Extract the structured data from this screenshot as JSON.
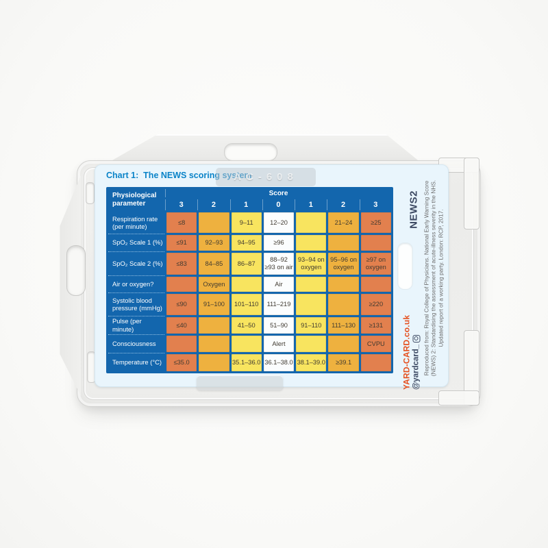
{
  "holder": {
    "embossed_text": "AC-608"
  },
  "card": {
    "title": "Chart 1:  The NEWS scoring system",
    "side": {
      "news2_label": "NEWS2",
      "attribution_lines": [
        "Reproduced from: Royal College of Physicians. National Early Warning Score",
        "(NEWS) 2: Standardising the assessment of acute-illness severity in the NHS.",
        "Updated report of a working party. London: RCP, 2017."
      ],
      "brand_url": "YARD-CARD.co.uk",
      "instagram_handle": "@yardcard_",
      "instagram_icon": "instagram-icon"
    },
    "colors": {
      "card_bg": "#e9f5fc",
      "title_blue": "#0a83c8",
      "table_blue": "#1366ad",
      "brand_orange": "#e5501f",
      "navy": "#3d4a63"
    }
  },
  "table": {
    "header": {
      "parameter_label": "Physiological parameter",
      "score_label": "Score",
      "score_columns": [
        "3",
        "2",
        "1",
        "0",
        "1",
        "2",
        "3"
      ]
    },
    "colors": {
      "score_3": "#e2804e",
      "score_2": "#eeb13f",
      "score_1": "#f8e45f",
      "score_0": "#fbfdfe"
    },
    "rows": [
      {
        "label": "Respiration rate (per minute)",
        "cells": [
          {
            "text": "≤8",
            "color": "score_3"
          },
          {
            "text": "",
            "color": "score_2"
          },
          {
            "text": "9–11",
            "color": "score_1"
          },
          {
            "text": "12–20",
            "color": "score_0"
          },
          {
            "text": "",
            "color": "score_1"
          },
          {
            "text": "21–24",
            "color": "score_2"
          },
          {
            "text": "≥25",
            "color": "score_3"
          }
        ]
      },
      {
        "label": "SpO₂ Scale 1 (%)",
        "cells": [
          {
            "text": "≤91",
            "color": "score_3"
          },
          {
            "text": "92–93",
            "color": "score_2"
          },
          {
            "text": "94–95",
            "color": "score_1"
          },
          {
            "text": "≥96",
            "color": "score_0"
          },
          {
            "text": "",
            "color": "score_1"
          },
          {
            "text": "",
            "color": "score_2"
          },
          {
            "text": "",
            "color": "score_3"
          }
        ]
      },
      {
        "label": "SpO₂ Scale 2 (%)",
        "cells": [
          {
            "text": "≤83",
            "color": "score_3"
          },
          {
            "text": "84–85",
            "color": "score_2"
          },
          {
            "text": "86–87",
            "color": "score_1"
          },
          {
            "text": "88–92\n≥93 on air",
            "color": "score_0"
          },
          {
            "text": "93–94 on oxygen",
            "color": "score_1"
          },
          {
            "text": "95–96 on oxygen",
            "color": "score_2"
          },
          {
            "text": "≥97 on oxygen",
            "color": "score_3"
          }
        ]
      },
      {
        "label": "Air or oxygen?",
        "cells": [
          {
            "text": "",
            "color": "score_3"
          },
          {
            "text": "Oxygen",
            "color": "score_2"
          },
          {
            "text": "",
            "color": "score_1"
          },
          {
            "text": "Air",
            "color": "score_0"
          },
          {
            "text": "",
            "color": "score_1"
          },
          {
            "text": "",
            "color": "score_2"
          },
          {
            "text": "",
            "color": "score_3"
          }
        ]
      },
      {
        "label": "Systolic blood pressure (mmHg)",
        "cells": [
          {
            "text": "≤90",
            "color": "score_3"
          },
          {
            "text": "91–100",
            "color": "score_2"
          },
          {
            "text": "101–110",
            "color": "score_1"
          },
          {
            "text": "111–219",
            "color": "score_0"
          },
          {
            "text": "",
            "color": "score_1"
          },
          {
            "text": "",
            "color": "score_2"
          },
          {
            "text": "≥220",
            "color": "score_3"
          }
        ]
      },
      {
        "label": "Pulse (per minute)",
        "cells": [
          {
            "text": "≤40",
            "color": "score_3"
          },
          {
            "text": "",
            "color": "score_2"
          },
          {
            "text": "41–50",
            "color": "score_1"
          },
          {
            "text": "51–90",
            "color": "score_0"
          },
          {
            "text": "91–110",
            "color": "score_1"
          },
          {
            "text": "111–130",
            "color": "score_2"
          },
          {
            "text": "≥131",
            "color": "score_3"
          }
        ]
      },
      {
        "label": "Consciousness",
        "cells": [
          {
            "text": "",
            "color": "score_3"
          },
          {
            "text": "",
            "color": "score_2"
          },
          {
            "text": "",
            "color": "score_1"
          },
          {
            "text": "Alert",
            "color": "score_0"
          },
          {
            "text": "",
            "color": "score_1"
          },
          {
            "text": "",
            "color": "score_2"
          },
          {
            "text": "CVPU",
            "color": "score_3"
          }
        ]
      },
      {
        "label": "Temperature (°C)",
        "cells": [
          {
            "text": "≤35.0",
            "color": "score_3"
          },
          {
            "text": "",
            "color": "score_2"
          },
          {
            "text": "35.1–36.0",
            "color": "score_1"
          },
          {
            "text": "36.1–38.0",
            "color": "score_0"
          },
          {
            "text": "38.1–39.0",
            "color": "score_1"
          },
          {
            "text": "≥39.1",
            "color": "score_2"
          },
          {
            "text": "",
            "color": "score_3"
          }
        ]
      }
    ]
  }
}
